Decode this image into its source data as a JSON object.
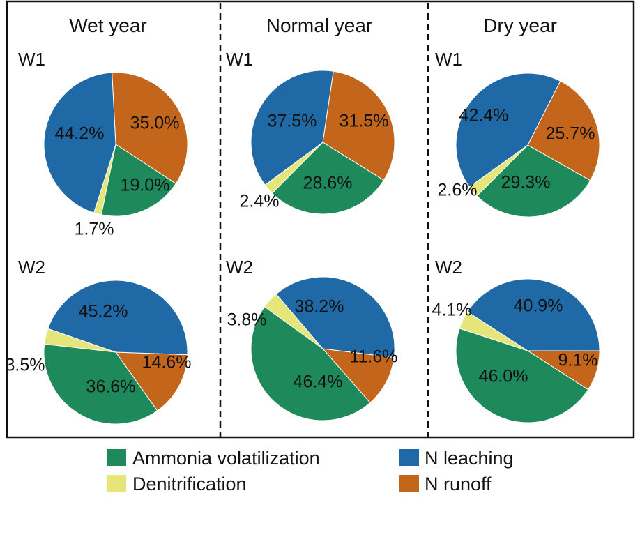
{
  "colors": {
    "Ammonia volatilization": "#1e8a5c",
    "Denitrification": "#e6e57a",
    "N leaching": "#1f6aa6",
    "N runoff": "#c4651c"
  },
  "chart_data": {
    "type": "pie",
    "columns": [
      "Wet year",
      "Normal year",
      "Dry year"
    ],
    "rows": [
      "W1",
      "W2"
    ],
    "categories": [
      "N leaching",
      "N runoff",
      "Ammonia volatilization",
      "Denitrification"
    ],
    "charts": [
      {
        "column": "Wet year",
        "row": "W1",
        "values": {
          "N leaching": 44.2,
          "N runoff": 35.0,
          "Ammonia volatilization": 19.0,
          "Denitrification": 1.7
        },
        "labels": {
          "N leaching": "44.2%",
          "N runoff": "35.0%",
          "Ammonia volatilization": "19.0%",
          "Denitrification": "1.7%"
        }
      },
      {
        "column": "Normal year",
        "row": "W1",
        "values": {
          "N leaching": 37.5,
          "N runoff": 31.5,
          "Ammonia volatilization": 28.6,
          "Denitrification": 2.4
        },
        "labels": {
          "N leaching": "37.5%",
          "N runoff": "31.5%",
          "Ammonia volatilization": "28.6%",
          "Denitrification": "2.4%"
        }
      },
      {
        "column": "Dry year",
        "row": "W1",
        "values": {
          "N leaching": 42.4,
          "N runoff": 25.7,
          "Ammonia volatilization": 29.3,
          "Denitrification": 2.6
        },
        "labels": {
          "N leaching": "42.4%",
          "N runoff": "25.7%",
          "Ammonia volatilization": "29.3%",
          "Denitrification": "2.6%"
        }
      },
      {
        "column": "Wet year",
        "row": "W2",
        "values": {
          "N leaching": 45.2,
          "N runoff": 14.6,
          "Ammonia volatilization": 36.6,
          "Denitrification": 3.5
        },
        "labels": {
          "N leaching": "45.2%",
          "N runoff": "14.6%",
          "Ammonia volatilization": "36.6%",
          "Denitrification": "3.5%"
        }
      },
      {
        "column": "Normal year",
        "row": "W2",
        "values": {
          "N leaching": 38.2,
          "N runoff": 11.6,
          "Ammonia volatilization": 46.4,
          "Denitrification": 3.8
        },
        "labels": {
          "N leaching": "38.2%",
          "N runoff": "11.6%",
          "Ammonia volatilization": "46.4%",
          "Denitrification": "3.8%"
        }
      },
      {
        "column": "Dry year",
        "row": "W2",
        "values": {
          "N leaching": 40.9,
          "N runoff": 9.1,
          "Ammonia volatilization": 46.0,
          "Denitrification": 4.1
        },
        "labels": {
          "N leaching": "40.9%",
          "N runoff": "9.1%",
          "Ammonia volatilization": "46.0%",
          "Denitrification": "4.1%"
        }
      }
    ],
    "legend": [
      "Ammonia volatilization",
      "Denitrification",
      "N leaching",
      "N runoff"
    ],
    "legend_placement": "bottom"
  }
}
